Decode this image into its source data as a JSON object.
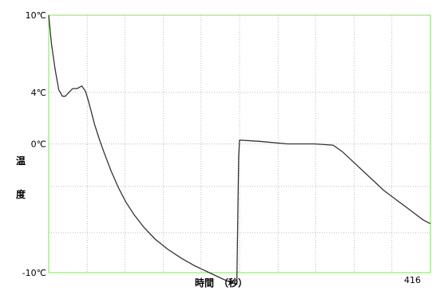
{
  "chart_data": {
    "type": "line",
    "title": "",
    "xlabel": "時間　（秒）",
    "ylabel": [
      "温",
      "度"
    ],
    "x_end_label": "416",
    "xlim": [
      0,
      416
    ],
    "ylim": [
      -10,
      10
    ],
    "y_ticks": [
      {
        "value": 10,
        "label": "10℃"
      },
      {
        "value": 4,
        "label": "4℃"
      },
      {
        "value": 0,
        "label": "0℃"
      },
      {
        "value": -10,
        "label": "-10℃"
      }
    ],
    "x_grid": [
      42,
      83,
      125,
      166,
      208,
      250,
      291,
      333,
      374
    ],
    "y_grid": [
      4,
      0,
      -3.3,
      -6.9
    ],
    "grid": true,
    "colors": {
      "frame": "#88dd66",
      "grid": "#bdbdbd",
      "line": "#333333"
    },
    "series": [
      {
        "name": "",
        "x": [
          0,
          3,
          7,
          11,
          15,
          18,
          22,
          26,
          31,
          36,
          40,
          43,
          46,
          50,
          55,
          60,
          68,
          76,
          84,
          93,
          104,
          116,
          130,
          145,
          160,
          175,
          190,
          200,
          205,
          207,
          208,
          230,
          260,
          290,
          310,
          320,
          335,
          350,
          365,
          380,
          395,
          408,
          416
        ],
        "y": [
          10,
          7.8,
          5.8,
          4.2,
          3.7,
          3.7,
          4.0,
          4.3,
          4.3,
          4.5,
          4.1,
          3.4,
          2.6,
          1.5,
          0.4,
          -0.6,
          -2.1,
          -3.4,
          -4.5,
          -5.5,
          -6.5,
          -7.4,
          -8.2,
          -8.9,
          -9.5,
          -10.0,
          -10.5,
          -10.8,
          -10.9,
          -1.0,
          0.3,
          0.2,
          0.0,
          0.0,
          -0.1,
          -0.6,
          -1.6,
          -2.6,
          -3.6,
          -4.4,
          -5.2,
          -5.9,
          -6.2
        ]
      }
    ]
  }
}
